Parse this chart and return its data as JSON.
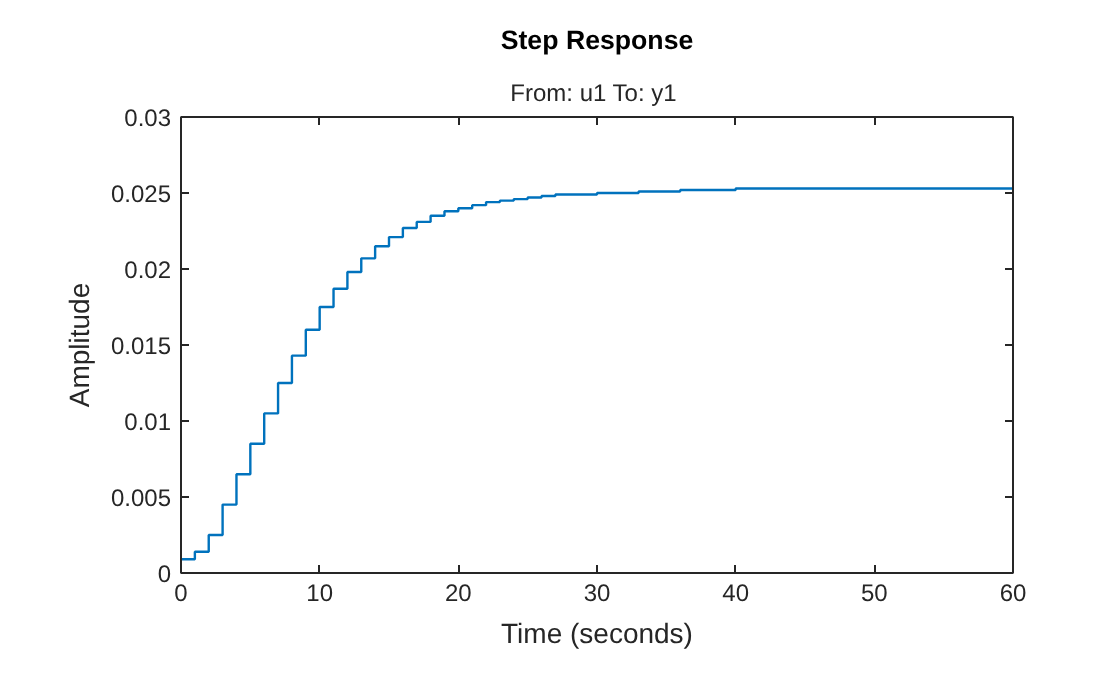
{
  "chart_data": {
    "type": "step",
    "title": "Step Response",
    "subtitle": "From: u1  To: y1",
    "xlabel": "Time (seconds)",
    "ylabel": "Amplitude",
    "x": [
      0,
      1,
      2,
      3,
      4,
      5,
      6,
      7,
      8,
      9,
      10,
      11,
      12,
      13,
      14,
      15,
      16,
      17,
      18,
      19,
      20,
      21,
      22,
      23,
      24,
      25,
      26,
      27,
      28,
      30,
      33,
      36,
      40,
      60
    ],
    "series": [
      {
        "color": "#0072bd",
        "values": [
          0.0009,
          0.0014,
          0.0025,
          0.0045,
          0.0065,
          0.0085,
          0.0105,
          0.0125,
          0.0143,
          0.016,
          0.0175,
          0.0187,
          0.0198,
          0.0207,
          0.0215,
          0.0221,
          0.0227,
          0.0231,
          0.0235,
          0.0238,
          0.024,
          0.0242,
          0.0244,
          0.0245,
          0.0246,
          0.0247,
          0.0248,
          0.0249,
          0.0249,
          0.025,
          0.0251,
          0.0252,
          0.0253,
          0.0253
        ]
      }
    ],
    "xlim": [
      0,
      60
    ],
    "xticks": [
      0,
      10,
      20,
      30,
      40,
      50,
      60
    ],
    "ylim": [
      0,
      0.03
    ],
    "yticks": [
      0,
      0.005,
      0.01,
      0.015,
      0.02,
      0.025,
      0.03
    ],
    "grid": false
  }
}
